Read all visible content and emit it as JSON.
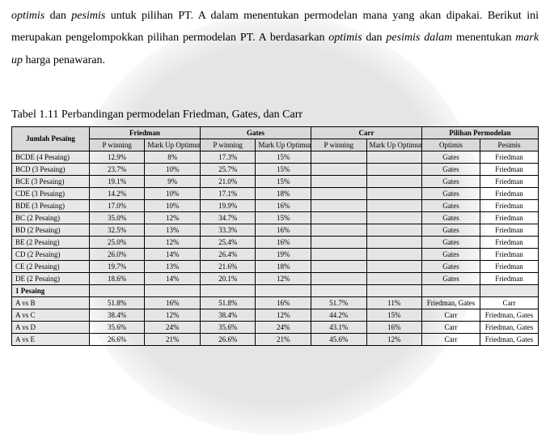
{
  "paragraph": {
    "line1_pre": "optimis",
    "line1_mid": " dan ",
    "line1_it2": "pesimis",
    "line1_post": " untuk pilihan PT. A dalam menentukan permodelan mana yang akan",
    "line2": "dipakai. Berikut ini merupakan pengelompokkan pilihan permodelan PT. A berdasarkan",
    "line3_it1": "optimis",
    "line3_mid1": " dan ",
    "line3_it2": "pesimis dalam",
    "line3_mid2": " menentukan ",
    "line3_it3": "mark up",
    "line3_post": " harga penawaran."
  },
  "caption": "Tabel 1.11 Perbandingan permodelan Friedman, Gates, dan Carr",
  "headers": {
    "col1": "Jumlah Pesaing",
    "groups": [
      "Friedman",
      "Gates",
      "Carr",
      "Pilihan Permodelan"
    ],
    "sub_pwin": "P winning",
    "sub_markup": "Mark Up Optimum",
    "sub_opt": "Optimis",
    "sub_pes": "Pesimis"
  },
  "rows": [
    {
      "label": "BCDE (4 Pesaing)",
      "f_p": "12.9%",
      "f_m": "8%",
      "g_p": "17.3%",
      "g_m": "15%",
      "c_p": "",
      "c_m": "",
      "opt": "Gates",
      "pes": "Friedman"
    },
    {
      "label": "BCD (3 Pesaing)",
      "f_p": "23.7%",
      "f_m": "10%",
      "g_p": "25.7%",
      "g_m": "15%",
      "c_p": "",
      "c_m": "",
      "opt": "Gates",
      "pes": "Friedman"
    },
    {
      "label": "BCE (3 Pesaing)",
      "f_p": "19.1%",
      "f_m": "9%",
      "g_p": "21.0%",
      "g_m": "15%",
      "c_p": "",
      "c_m": "",
      "opt": "Gates",
      "pes": "Friedman"
    },
    {
      "label": "CDE (3 Pesaing)",
      "f_p": "14.2%",
      "f_m": "10%",
      "g_p": "17.1%",
      "g_m": "18%",
      "c_p": "",
      "c_m": "",
      "opt": "Gates",
      "pes": "Friedman"
    },
    {
      "label": "BDE (3 Pesaing)",
      "f_p": "17.0%",
      "f_m": "10%",
      "g_p": "19.9%",
      "g_m": "16%",
      "c_p": "",
      "c_m": "",
      "opt": "Gates",
      "pes": "Friedman"
    },
    {
      "label": "BC (2 Pesaing)",
      "f_p": "35.0%",
      "f_m": "12%",
      "g_p": "34.7%",
      "g_m": "15%",
      "c_p": "",
      "c_m": "",
      "opt": "Gates",
      "pes": "Friedman"
    },
    {
      "label": "BD (2 Pesaing)",
      "f_p": "32.5%",
      "f_m": "13%",
      "g_p": "33.3%",
      "g_m": "16%",
      "c_p": "",
      "c_m": "",
      "opt": "Gates",
      "pes": "Friedman"
    },
    {
      "label": "BE (2 Pesaing)",
      "f_p": "25.0%",
      "f_m": "12%",
      "g_p": "25.4%",
      "g_m": "16%",
      "c_p": "",
      "c_m": "",
      "opt": "Gates",
      "pes": "Friedman"
    },
    {
      "label": "CD (2 Pesaing)",
      "f_p": "26.0%",
      "f_m": "14%",
      "g_p": "26.4%",
      "g_m": "19%",
      "c_p": "",
      "c_m": "",
      "opt": "Gates",
      "pes": "Friedman"
    },
    {
      "label": "CE (2 Pesaing)",
      "f_p": "19.7%",
      "f_m": "13%",
      "g_p": "21.6%",
      "g_m": "18%",
      "c_p": "",
      "c_m": "",
      "opt": "Gates",
      "pes": "Friedman"
    },
    {
      "label": "DE (2 Pesaing)",
      "f_p": "18.6%",
      "f_m": "14%",
      "g_p": "20.1%",
      "g_m": "12%",
      "c_p": "",
      "c_m": "",
      "opt": "Gates",
      "pes": "Friedman"
    }
  ],
  "section_label": "1 Pesaing",
  "rows2": [
    {
      "label": "A vs B",
      "f_p": "51.8%",
      "f_m": "16%",
      "g_p": "51.8%",
      "g_m": "16%",
      "c_p": "51.7%",
      "c_m": "11%",
      "opt": "Friedman, Gates",
      "pes": "Carr"
    },
    {
      "label": "A vs C",
      "f_p": "38.4%",
      "f_m": "12%",
      "g_p": "38.4%",
      "g_m": "12%",
      "c_p": "44.2%",
      "c_m": "15%",
      "opt": "Carr",
      "pes": "Friedman, Gates"
    },
    {
      "label": "A vs D",
      "f_p": "35.6%",
      "f_m": "24%",
      "g_p": "35.6%",
      "g_m": "24%",
      "c_p": "43.1%",
      "c_m": "16%",
      "opt": "Carr",
      "pes": "Friedman, Gates"
    },
    {
      "label": "A vs E",
      "f_p": "26.6%",
      "f_m": "21%",
      "g_p": "26.6%",
      "g_m": "21%",
      "c_p": "45.6%",
      "c_m": "12%",
      "opt": "Carr",
      "pes": "Friedman, Gates"
    }
  ]
}
